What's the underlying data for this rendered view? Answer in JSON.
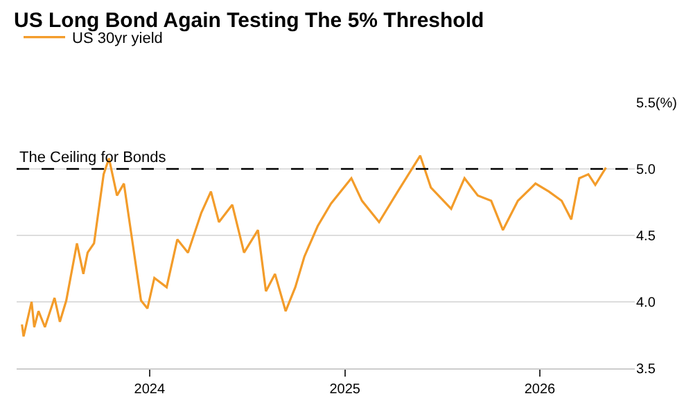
{
  "chart_data": {
    "type": "line",
    "title": "US Long Bond Again Testing The 5% Threshold",
    "x": [
      "2023-05-07",
      "2023-05-10",
      "2023-05-25",
      "2023-05-30",
      "2023-06-07",
      "2023-06-19",
      "2023-07-07",
      "2023-07-17",
      "2023-07-29",
      "2023-08-18",
      "2023-08-30",
      "2023-09-07",
      "2023-09-19",
      "2023-10-07",
      "2023-10-17",
      "2023-11-01",
      "2023-11-14",
      "2023-12-04",
      "2023-12-16",
      "2023-12-28",
      "2024-01-10",
      "2024-02-02",
      "2024-02-22",
      "2024-03-13",
      "2024-04-07",
      "2024-04-25",
      "2024-05-10",
      "2024-06-04",
      "2024-06-26",
      "2024-07-22",
      "2024-08-06",
      "2024-08-23",
      "2024-09-12",
      "2024-09-30",
      "2024-10-17",
      "2024-11-11",
      "2024-12-06",
      "2025-01-13",
      "2025-02-02",
      "2025-03-06",
      "2025-04-10",
      "2025-05-22",
      "2025-06-11",
      "2025-07-19",
      "2025-08-13",
      "2025-09-07",
      "2025-10-02",
      "2025-10-24",
      "2025-11-21",
      "2025-12-24",
      "2026-01-18",
      "2026-02-11",
      "2026-03-01",
      "2026-03-16",
      "2026-04-02",
      "2026-04-15",
      "2026-05-05"
    ],
    "series": [
      {
        "name": "US 30yr yield",
        "color": "#f39c2a",
        "values": [
          3.83,
          3.74,
          4.0,
          3.81,
          3.93,
          3.81,
          4.03,
          3.85,
          4.01,
          4.44,
          4.21,
          4.37,
          4.44,
          4.96,
          5.08,
          4.8,
          4.89,
          4.34,
          4.01,
          3.95,
          4.18,
          4.11,
          4.47,
          4.37,
          4.67,
          4.83,
          4.6,
          4.73,
          4.37,
          4.54,
          4.08,
          4.21,
          3.93,
          4.11,
          4.34,
          4.57,
          4.74,
          4.93,
          4.76,
          4.6,
          4.83,
          5.1,
          4.86,
          4.7,
          4.93,
          4.8,
          4.76,
          4.54,
          4.76,
          4.89,
          4.83,
          4.76,
          4.62,
          4.93,
          4.96,
          4.88,
          5.01
        ]
      }
    ],
    "xlim": [
      "2023-04-27",
      "2026-06-28"
    ],
    "xticks": [
      "2024",
      "2025",
      "2026"
    ],
    "ylim": [
      3.5,
      5.5
    ],
    "yticks": [
      3.5,
      {
        "value": 4,
        "label": "4.0"
      },
      4.5,
      {
        "value": 5,
        "label": "5.0"
      },
      {
        "value": 5.5,
        "label": "5.5(%)"
      }
    ],
    "ref_lines": [
      {
        "axis": "y",
        "value": 5.0,
        "label": "The Ceiling for Bonds",
        "color": "#000000",
        "line_style": "dashed"
      }
    ],
    "grid": "y",
    "legend": "top left",
    "line_style": "solid",
    "marker": "none"
  }
}
